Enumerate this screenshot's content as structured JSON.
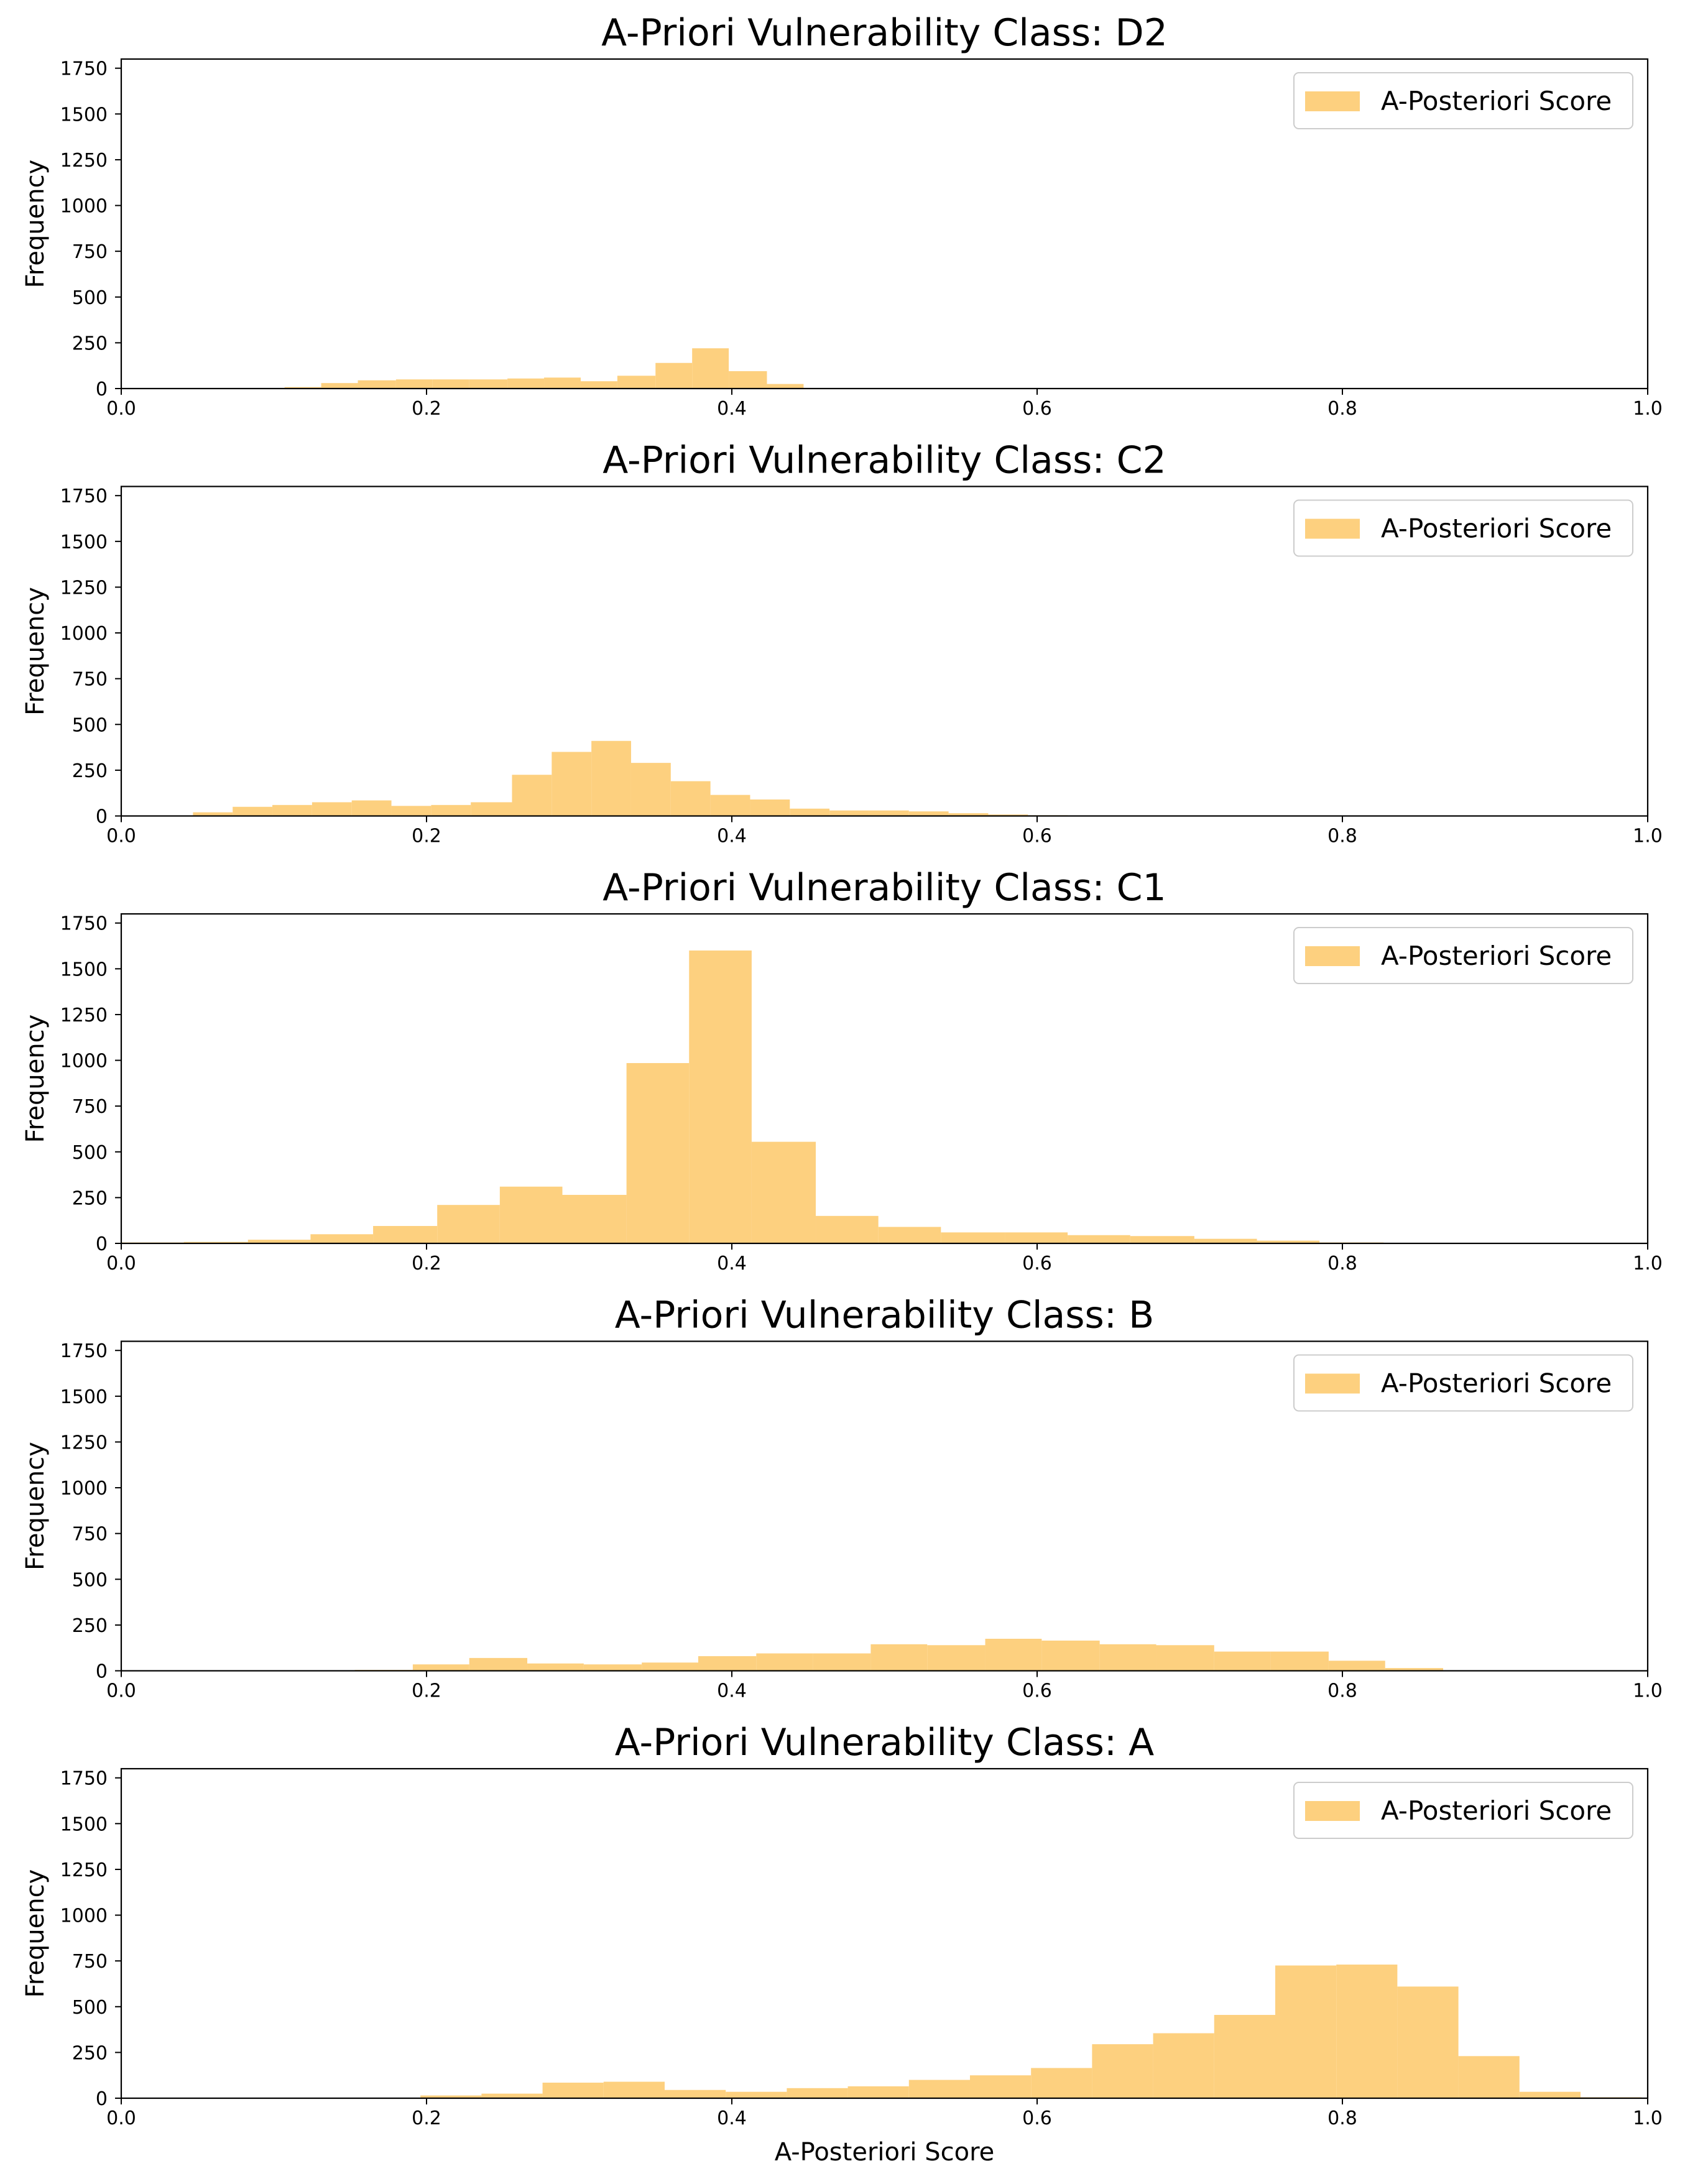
{
  "chart_data": [
    {
      "type": "histogram",
      "title": "A-Priori Vulnerability Class: D2",
      "xlabel": "",
      "ylabel": "Frequency",
      "xlim": [
        0.0,
        1.0
      ],
      "ylim": [
        0,
        1800
      ],
      "xticks": [
        "0.0",
        "0.2",
        "0.4",
        "0.6",
        "0.8",
        "1.0"
      ],
      "yticks": [
        "0",
        "250",
        "500",
        "750",
        "1000",
        "1250",
        "1500",
        "1750"
      ],
      "legend": [
        "A-Posteriori Score"
      ],
      "legend_position": "top-right",
      "bar_color": "#fdd07f",
      "bins": [
        {
          "x0": 0.107,
          "x1": 0.131,
          "value": 8
        },
        {
          "x0": 0.131,
          "x1": 0.155,
          "value": 30
        },
        {
          "x0": 0.155,
          "x1": 0.18,
          "value": 45
        },
        {
          "x0": 0.18,
          "x1": 0.204,
          "value": 50
        },
        {
          "x0": 0.204,
          "x1": 0.228,
          "value": 50
        },
        {
          "x0": 0.228,
          "x1": 0.253,
          "value": 50
        },
        {
          "x0": 0.253,
          "x1": 0.277,
          "value": 55
        },
        {
          "x0": 0.277,
          "x1": 0.301,
          "value": 60
        },
        {
          "x0": 0.301,
          "x1": 0.325,
          "value": 40
        },
        {
          "x0": 0.325,
          "x1": 0.35,
          "value": 70
        },
        {
          "x0": 0.35,
          "x1": 0.374,
          "value": 140
        },
        {
          "x0": 0.374,
          "x1": 0.398,
          "value": 220
        },
        {
          "x0": 0.398,
          "x1": 0.423,
          "value": 95
        },
        {
          "x0": 0.423,
          "x1": 0.447,
          "value": 25
        }
      ]
    },
    {
      "type": "histogram",
      "title": "A-Priori Vulnerability Class: C2",
      "xlabel": "",
      "ylabel": "Frequency",
      "xlim": [
        0.0,
        1.0
      ],
      "ylim": [
        0,
        1800
      ],
      "xticks": [
        "0.0",
        "0.2",
        "0.4",
        "0.6",
        "0.8",
        "1.0"
      ],
      "yticks": [
        "0",
        "250",
        "500",
        "750",
        "1000",
        "1250",
        "1500",
        "1750"
      ],
      "legend": [
        "A-Posteriori Score"
      ],
      "legend_position": "top-right",
      "bar_color": "#fdd07f",
      "bins": [
        {
          "x0": 0.047,
          "x1": 0.073,
          "value": 20
        },
        {
          "x0": 0.073,
          "x1": 0.099,
          "value": 50
        },
        {
          "x0": 0.099,
          "x1": 0.125,
          "value": 60
        },
        {
          "x0": 0.125,
          "x1": 0.151,
          "value": 75
        },
        {
          "x0": 0.151,
          "x1": 0.177,
          "value": 85
        },
        {
          "x0": 0.177,
          "x1": 0.203,
          "value": 55
        },
        {
          "x0": 0.203,
          "x1": 0.229,
          "value": 60
        },
        {
          "x0": 0.229,
          "x1": 0.256,
          "value": 75
        },
        {
          "x0": 0.256,
          "x1": 0.282,
          "value": 225
        },
        {
          "x0": 0.282,
          "x1": 0.308,
          "value": 350
        },
        {
          "x0": 0.308,
          "x1": 0.334,
          "value": 410
        },
        {
          "x0": 0.334,
          "x1": 0.36,
          "value": 290
        },
        {
          "x0": 0.36,
          "x1": 0.386,
          "value": 190
        },
        {
          "x0": 0.386,
          "x1": 0.412,
          "value": 115
        },
        {
          "x0": 0.412,
          "x1": 0.438,
          "value": 90
        },
        {
          "x0": 0.438,
          "x1": 0.464,
          "value": 40
        },
        {
          "x0": 0.464,
          "x1": 0.49,
          "value": 30
        },
        {
          "x0": 0.49,
          "x1": 0.516,
          "value": 30
        },
        {
          "x0": 0.516,
          "x1": 0.542,
          "value": 25
        },
        {
          "x0": 0.542,
          "x1": 0.568,
          "value": 15
        },
        {
          "x0": 0.568,
          "x1": 0.594,
          "value": 8
        },
        {
          "x0": 0.594,
          "x1": 0.62,
          "value": 4
        }
      ]
    },
    {
      "type": "histogram",
      "title": "A-Priori Vulnerability Class: C1",
      "xlabel": "",
      "ylabel": "Frequency",
      "xlim": [
        0.0,
        1.0
      ],
      "ylim": [
        0,
        1800
      ],
      "xticks": [
        "0.0",
        "0.2",
        "0.4",
        "0.6",
        "0.8",
        "1.0"
      ],
      "yticks": [
        "0",
        "250",
        "500",
        "750",
        "1000",
        "1250",
        "1500",
        "1750"
      ],
      "legend": [
        "A-Posteriori Score"
      ],
      "legend_position": "top-right",
      "bar_color": "#fdd07f",
      "bins": [
        {
          "x0": 0.0,
          "x1": 0.041,
          "value": 5
        },
        {
          "x0": 0.041,
          "x1": 0.083,
          "value": 8
        },
        {
          "x0": 0.083,
          "x1": 0.124,
          "value": 20
        },
        {
          "x0": 0.124,
          "x1": 0.165,
          "value": 50
        },
        {
          "x0": 0.165,
          "x1": 0.207,
          "value": 95
        },
        {
          "x0": 0.207,
          "x1": 0.248,
          "value": 210
        },
        {
          "x0": 0.248,
          "x1": 0.289,
          "value": 310
        },
        {
          "x0": 0.289,
          "x1": 0.331,
          "value": 265
        },
        {
          "x0": 0.331,
          "x1": 0.372,
          "value": 985
        },
        {
          "x0": 0.372,
          "x1": 0.413,
          "value": 1600
        },
        {
          "x0": 0.413,
          "x1": 0.455,
          "value": 555
        },
        {
          "x0": 0.455,
          "x1": 0.496,
          "value": 150
        },
        {
          "x0": 0.496,
          "x1": 0.537,
          "value": 90
        },
        {
          "x0": 0.537,
          "x1": 0.579,
          "value": 60
        },
        {
          "x0": 0.579,
          "x1": 0.62,
          "value": 60
        },
        {
          "x0": 0.62,
          "x1": 0.661,
          "value": 45
        },
        {
          "x0": 0.661,
          "x1": 0.703,
          "value": 40
        },
        {
          "x0": 0.703,
          "x1": 0.744,
          "value": 25
        },
        {
          "x0": 0.744,
          "x1": 0.785,
          "value": 15
        },
        {
          "x0": 0.785,
          "x1": 0.827,
          "value": 5
        }
      ]
    },
    {
      "type": "histogram",
      "title": "A-Priori Vulnerability Class: B",
      "xlabel": "",
      "ylabel": "Frequency",
      "xlim": [
        0.0,
        1.0
      ],
      "ylim": [
        0,
        1800
      ],
      "xticks": [
        "0.0",
        "0.2",
        "0.4",
        "0.6",
        "0.8",
        "1.0"
      ],
      "yticks": [
        "0",
        "250",
        "500",
        "750",
        "1000",
        "1250",
        "1500",
        "1750"
      ],
      "legend": [
        "A-Posteriori Score"
      ],
      "legend_position": "top-right",
      "bar_color": "#fdd07f",
      "bins": [
        {
          "x0": 0.153,
          "x1": 0.191,
          "value": 5
        },
        {
          "x0": 0.191,
          "x1": 0.228,
          "value": 35
        },
        {
          "x0": 0.228,
          "x1": 0.266,
          "value": 70
        },
        {
          "x0": 0.266,
          "x1": 0.303,
          "value": 40
        },
        {
          "x0": 0.303,
          "x1": 0.341,
          "value": 35
        },
        {
          "x0": 0.341,
          "x1": 0.378,
          "value": 45
        },
        {
          "x0": 0.378,
          "x1": 0.416,
          "value": 80
        },
        {
          "x0": 0.416,
          "x1": 0.453,
          "value": 95
        },
        {
          "x0": 0.453,
          "x1": 0.491,
          "value": 95
        },
        {
          "x0": 0.491,
          "x1": 0.528,
          "value": 145
        },
        {
          "x0": 0.528,
          "x1": 0.566,
          "value": 140
        },
        {
          "x0": 0.566,
          "x1": 0.603,
          "value": 175
        },
        {
          "x0": 0.603,
          "x1": 0.641,
          "value": 165
        },
        {
          "x0": 0.641,
          "x1": 0.678,
          "value": 145
        },
        {
          "x0": 0.678,
          "x1": 0.716,
          "value": 140
        },
        {
          "x0": 0.716,
          "x1": 0.753,
          "value": 105
        },
        {
          "x0": 0.753,
          "x1": 0.791,
          "value": 105
        },
        {
          "x0": 0.791,
          "x1": 0.828,
          "value": 55
        },
        {
          "x0": 0.828,
          "x1": 0.866,
          "value": 15
        }
      ]
    },
    {
      "type": "histogram",
      "title": "A-Priori Vulnerability Class: A",
      "xlabel": "A-Posteriori Score",
      "ylabel": "Frequency",
      "xlim": [
        0.0,
        1.0
      ],
      "ylim": [
        0,
        1800
      ],
      "xticks": [
        "0.0",
        "0.2",
        "0.4",
        "0.6",
        "0.8",
        "1.0"
      ],
      "yticks": [
        "0",
        "250",
        "500",
        "750",
        "1000",
        "1250",
        "1500",
        "1750"
      ],
      "legend": [
        "A-Posteriori Score"
      ],
      "legend_position": "top-right",
      "bar_color": "#fdd07f",
      "bins": [
        {
          "x0": 0.196,
          "x1": 0.236,
          "value": 15
        },
        {
          "x0": 0.236,
          "x1": 0.276,
          "value": 25
        },
        {
          "x0": 0.276,
          "x1": 0.316,
          "value": 85
        },
        {
          "x0": 0.316,
          "x1": 0.356,
          "value": 90
        },
        {
          "x0": 0.356,
          "x1": 0.396,
          "value": 45
        },
        {
          "x0": 0.396,
          "x1": 0.436,
          "value": 35
        },
        {
          "x0": 0.436,
          "x1": 0.476,
          "value": 55
        },
        {
          "x0": 0.476,
          "x1": 0.516,
          "value": 65
        },
        {
          "x0": 0.516,
          "x1": 0.556,
          "value": 100
        },
        {
          "x0": 0.556,
          "x1": 0.596,
          "value": 125
        },
        {
          "x0": 0.596,
          "x1": 0.636,
          "value": 165
        },
        {
          "x0": 0.636,
          "x1": 0.676,
          "value": 295
        },
        {
          "x0": 0.676,
          "x1": 0.716,
          "value": 355
        },
        {
          "x0": 0.716,
          "x1": 0.756,
          "value": 455
        },
        {
          "x0": 0.756,
          "x1": 0.796,
          "value": 725
        },
        {
          "x0": 0.796,
          "x1": 0.836,
          "value": 730
        },
        {
          "x0": 0.836,
          "x1": 0.876,
          "value": 610
        },
        {
          "x0": 0.876,
          "x1": 0.916,
          "value": 230
        },
        {
          "x0": 0.916,
          "x1": 0.956,
          "value": 35
        },
        {
          "x0": 0.956,
          "x1": 0.996,
          "value": 5
        }
      ]
    }
  ]
}
